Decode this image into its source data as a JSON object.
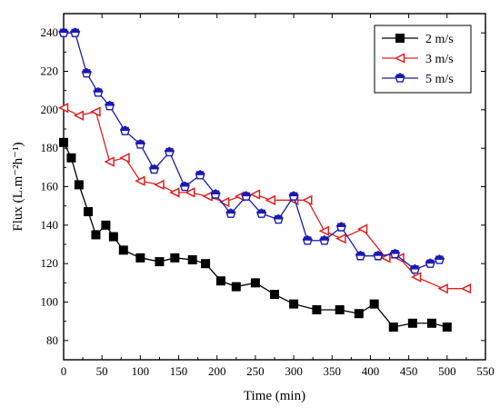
{
  "chart_data": {
    "type": "line",
    "title": "",
    "xlabel": "Time (min)",
    "ylabel": "Flux (L.m⁻²h⁻¹)",
    "xlim": [
      0,
      550
    ],
    "ylim": [
      70,
      250
    ],
    "x_ticks": [
      0,
      50,
      100,
      150,
      200,
      250,
      300,
      350,
      400,
      450,
      500,
      550
    ],
    "y_ticks": [
      80,
      100,
      120,
      140,
      160,
      180,
      200,
      220,
      240
    ],
    "grid": false,
    "legend_position": "top-right",
    "series": [
      {
        "name": "2 m/s",
        "marker": "square",
        "color": "#000000",
        "x": [
          0,
          10,
          20,
          32,
          42,
          55,
          65,
          78,
          100,
          125,
          145,
          168,
          185,
          205,
          225,
          250,
          275,
          300,
          330,
          360,
          385,
          405,
          430,
          455,
          480,
          500
        ],
        "y": [
          183,
          175,
          161,
          147,
          135,
          140,
          134,
          127,
          123,
          121,
          123,
          122,
          120,
          111,
          108,
          110,
          104,
          99,
          96,
          96,
          94,
          99,
          87,
          89,
          89,
          87
        ]
      },
      {
        "name": "3 m/s",
        "marker": "triangle-left",
        "color": "#e02020",
        "x": [
          0,
          20,
          42,
          60,
          80,
          100,
          125,
          145,
          165,
          188,
          210,
          230,
          250,
          270,
          300,
          318,
          340,
          362,
          390,
          420,
          438,
          460,
          495,
          525
        ],
        "y": [
          201,
          197,
          199,
          173,
          175,
          163,
          161,
          157,
          157,
          155,
          152,
          155,
          156,
          153,
          153,
          153,
          137,
          133,
          138,
          123,
          123,
          113,
          107,
          107
        ]
      },
      {
        "name": "5 m/s",
        "marker": "pentagon",
        "color": "#1a1ab0",
        "x": [
          0,
          15,
          30,
          45,
          60,
          80,
          100,
          118,
          138,
          158,
          178,
          198,
          218,
          238,
          258,
          280,
          300,
          318,
          340,
          362,
          387,
          410,
          432,
          458,
          478,
          490
        ],
        "y": [
          240,
          240,
          219,
          209,
          202,
          189,
          182,
          169,
          178,
          160,
          166,
          156,
          146,
          155,
          146,
          143,
          155,
          132,
          132,
          139,
          124,
          124,
          125,
          117,
          120,
          122
        ]
      }
    ]
  }
}
